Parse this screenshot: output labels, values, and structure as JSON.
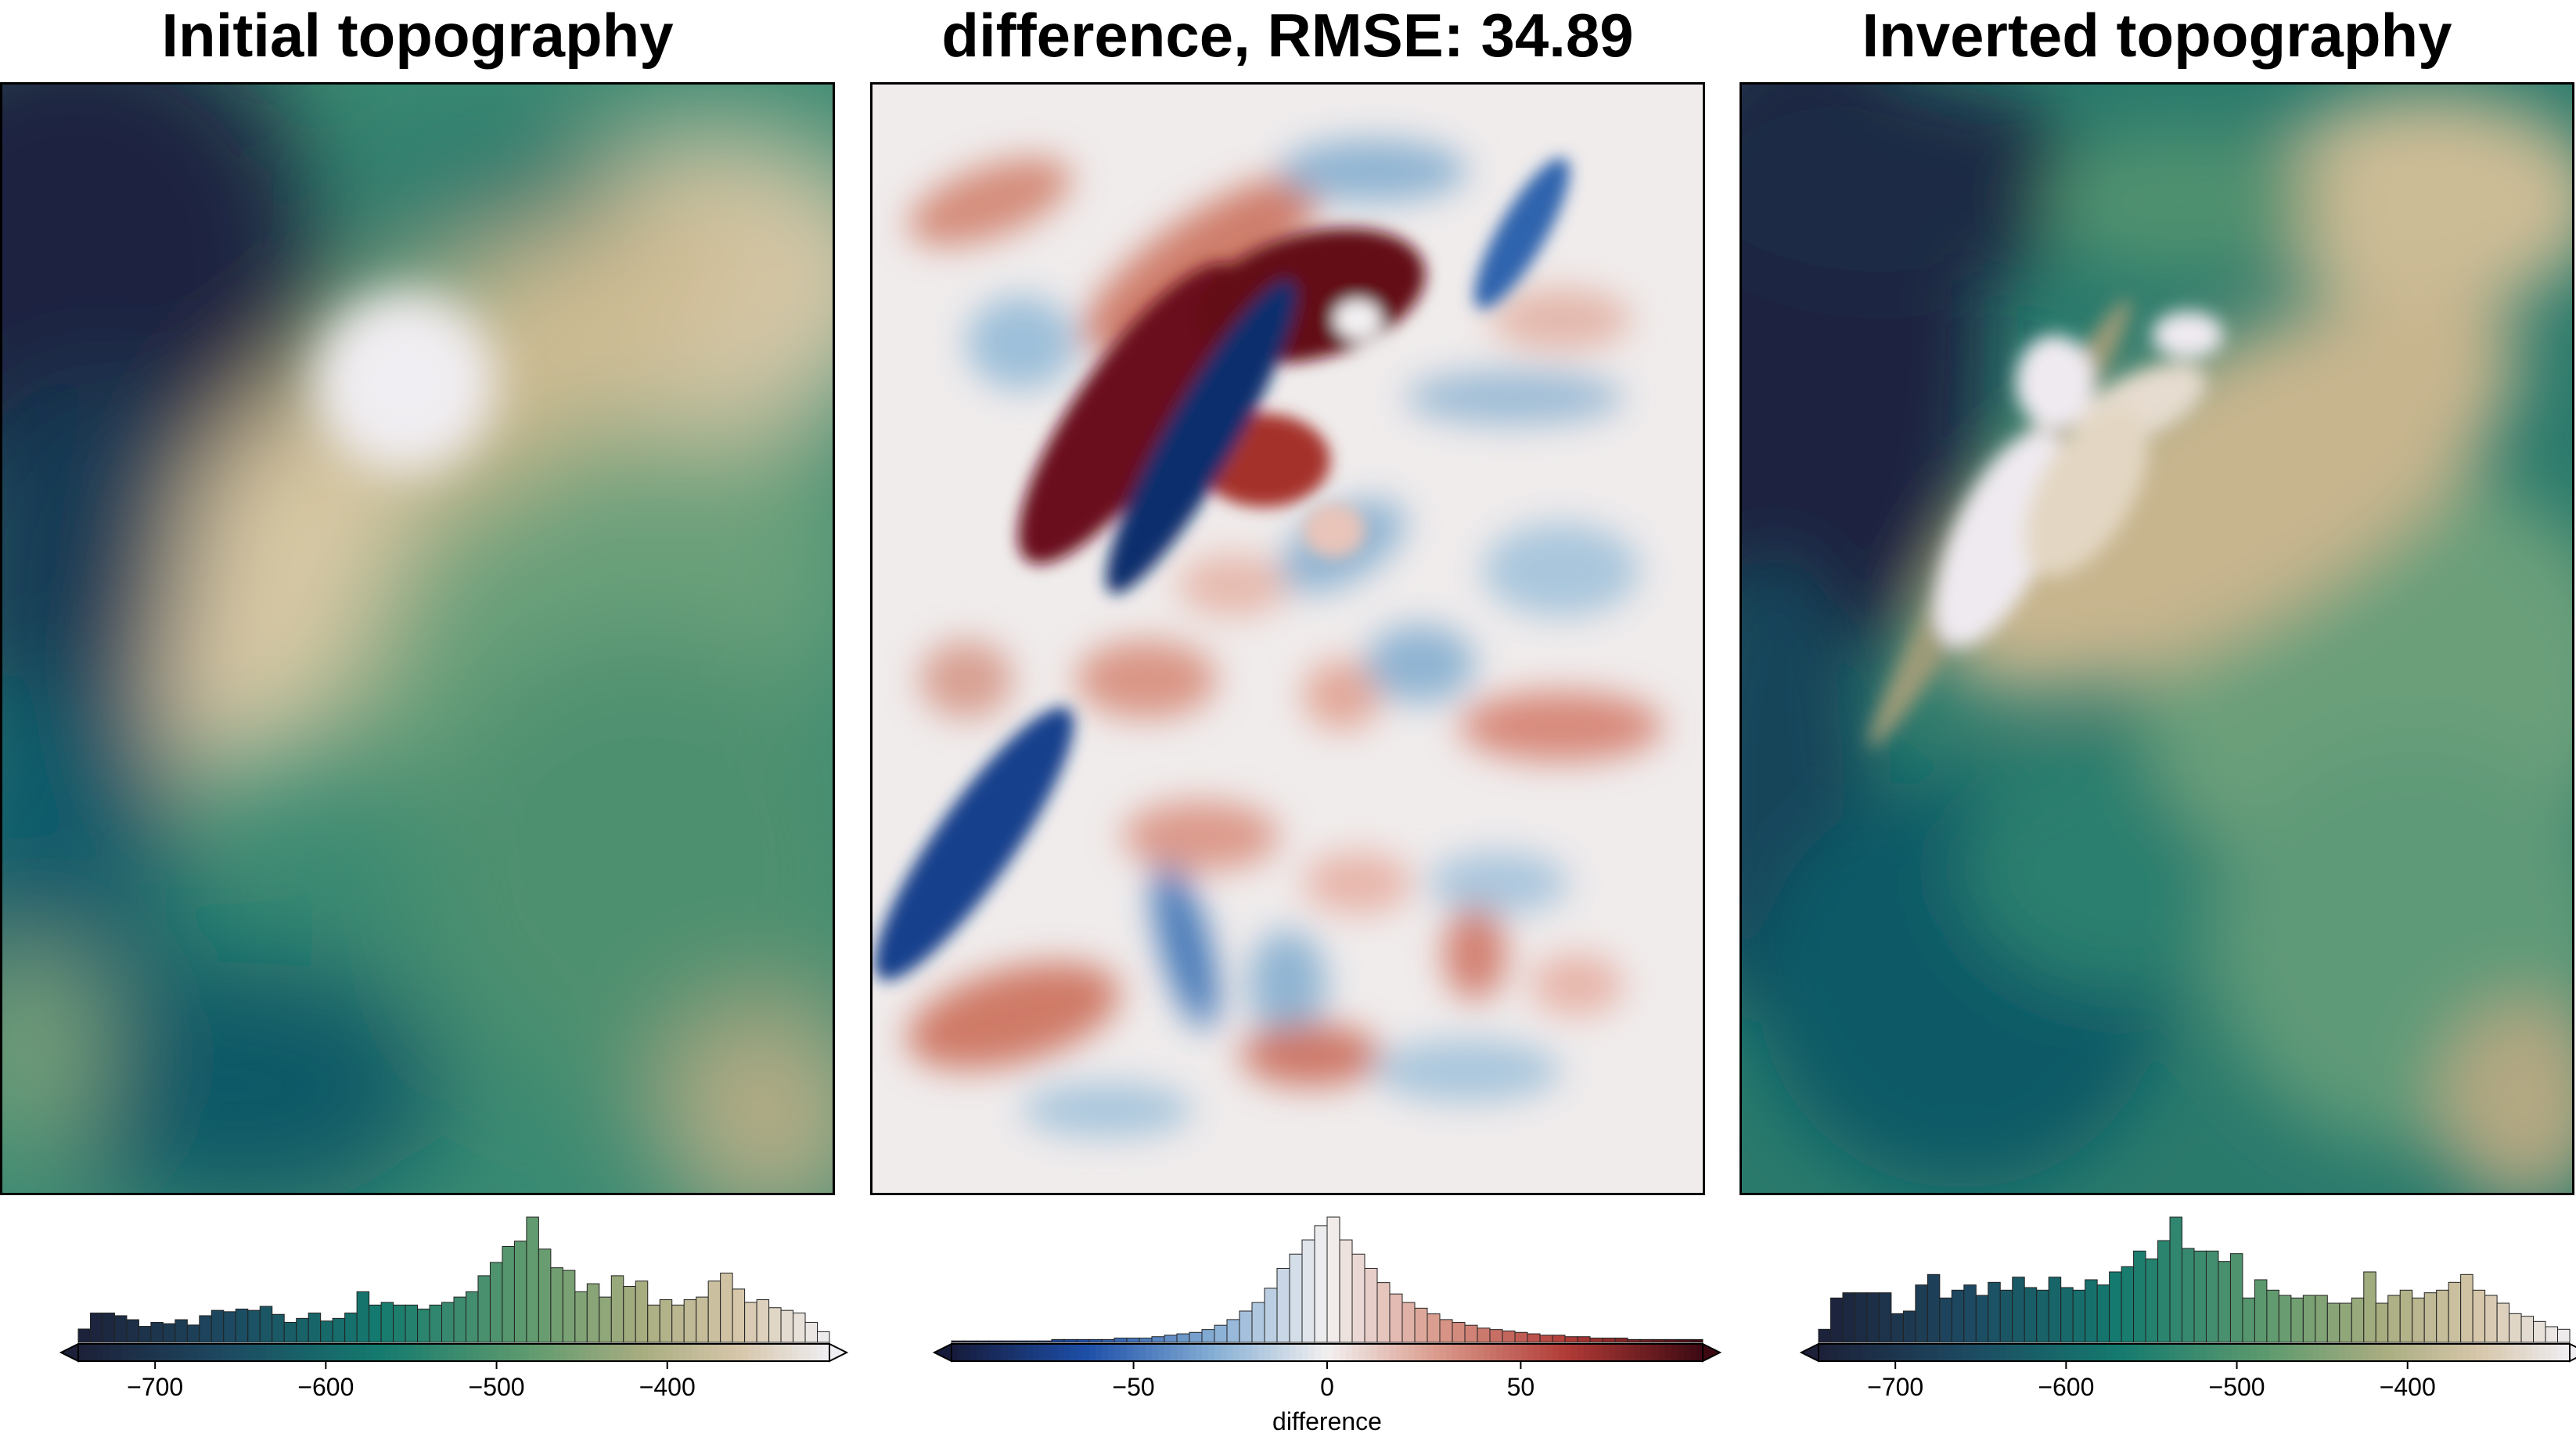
{
  "chart_data": [
    {
      "type": "heatmap",
      "title": "Initial topography",
      "colormap": "topo-green-tan",
      "colorbar": {
        "ticks": [
          -700,
          -600,
          -500,
          -400
        ],
        "tick_labels": [
          "−700",
          "−600",
          "−500",
          "−400"
        ],
        "range": [
          -745,
          -305
        ],
        "label": "",
        "histogram": [
          10,
          22,
          22,
          20,
          17,
          12,
          15,
          14,
          17,
          13,
          20,
          24,
          23,
          25,
          24,
          27,
          21,
          15,
          18,
          22,
          16,
          18,
          22,
          38,
          28,
          30,
          28,
          28,
          25,
          28,
          30,
          34,
          38,
          50,
          60,
          72,
          76,
          94,
          70,
          56,
          54,
          38,
          44,
          34,
          50,
          42,
          46,
          28,
          32,
          28,
          32,
          34,
          46,
          52,
          40,
          30,
          32,
          26,
          24,
          22,
          15,
          8
        ]
      }
    },
    {
      "type": "heatmap",
      "title": "difference, RMSE: 34.89",
      "colormap": "balance-diverging",
      "colorbar": {
        "ticks": [
          -50,
          0,
          50
        ],
        "tick_labels": [
          "−50",
          "0",
          "50"
        ],
        "range": [
          -97,
          97
        ],
        "label": "difference",
        "histogram": [
          1,
          1,
          1,
          1,
          1,
          1,
          1,
          1,
          2,
          2,
          2,
          2,
          2,
          3,
          3,
          3,
          4,
          5,
          6,
          7,
          9,
          12,
          16,
          22,
          28,
          38,
          52,
          62,
          72,
          82,
          88,
          72,
          62,
          52,
          42,
          34,
          28,
          24,
          20,
          16,
          14,
          12,
          10,
          9,
          8,
          7,
          6,
          5,
          5,
          4,
          4,
          3,
          3,
          3,
          2,
          2,
          2,
          2,
          2,
          2
        ]
      }
    },
    {
      "type": "heatmap",
      "title": "Inverted topography",
      "colormap": "topo-green-tan",
      "colorbar": {
        "ticks": [
          -700,
          -600,
          -500,
          -400
        ],
        "tick_labels": [
          "−700",
          "−600",
          "−500",
          "−400"
        ],
        "range": [
          -745,
          -305
        ],
        "label": "",
        "histogram": [
          10,
          34,
          38,
          38,
          38,
          38,
          22,
          24,
          44,
          52,
          34,
          40,
          44,
          36,
          46,
          40,
          50,
          42,
          40,
          50,
          42,
          40,
          48,
          44,
          54,
          58,
          70,
          64,
          78,
          96,
          72,
          70,
          70,
          62,
          68,
          34,
          48,
          40,
          36,
          34,
          36,
          36,
          30,
          30,
          34,
          54,
          30,
          36,
          40,
          34,
          38,
          40,
          46,
          52,
          40,
          36,
          30,
          22,
          20,
          16,
          12,
          10
        ]
      }
    }
  ]
}
